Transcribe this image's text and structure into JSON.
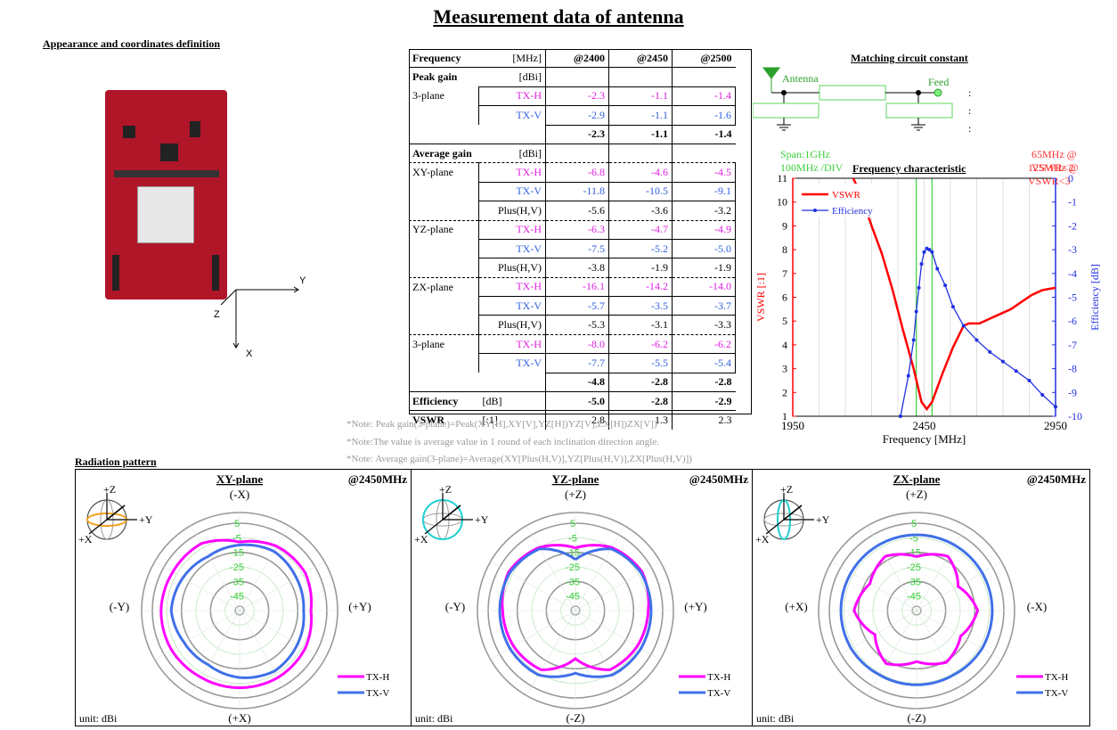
{
  "title": "Measurement data of antenna",
  "appearance": {
    "heading": "Appearance and coordinates definition",
    "axis_y": "Y",
    "axis_z": "Z",
    "axis_x": "X"
  },
  "table": {
    "header": [
      "Frequency",
      "[MHz]",
      "@2400",
      "@2450",
      "@2500"
    ],
    "peak_gain": {
      "label": "Peak gain",
      "unit": "[dBi]",
      "plane": "3-plane",
      "rows": [
        {
          "pol": "TX-H",
          "vals": [
            "-2.3",
            "-1.1",
            "-1.4"
          ]
        },
        {
          "pol": "TX-V",
          "vals": [
            "-2.9",
            "-1.1",
            "-1.6"
          ]
        }
      ],
      "total": [
        "-2.3",
        "-1.1",
        "-1.4"
      ]
    },
    "avg_gain": {
      "label": "Average gain",
      "unit": "[dBi]",
      "planes": [
        {
          "name": "XY-plane",
          "rows": [
            {
              "pol": "TX-H",
              "vals": [
                "-6.8",
                "-4.6",
                "-4.5"
              ]
            },
            {
              "pol": "TX-V",
              "vals": [
                "-11.8",
                "-10.5",
                "-9.1"
              ]
            },
            {
              "pol": "Plus(H,V)",
              "vals": [
                "-5.6",
                "-3.6",
                "-3.2"
              ]
            }
          ]
        },
        {
          "name": "YZ-plane",
          "rows": [
            {
              "pol": "TX-H",
              "vals": [
                "-6.3",
                "-4.7",
                "-4.9"
              ]
            },
            {
              "pol": "TX-V",
              "vals": [
                "-7.5",
                "-5.2",
                "-5.0"
              ]
            },
            {
              "pol": "Plus(H,V)",
              "vals": [
                "-3.8",
                "-1.9",
                "-1.9"
              ]
            }
          ]
        },
        {
          "name": "ZX-plane",
          "rows": [
            {
              "pol": "TX-H",
              "vals": [
                "-16.1",
                "-14.2",
                "-14.0"
              ]
            },
            {
              "pol": "TX-V",
              "vals": [
                "-5.7",
                "-3.5",
                "-3.7"
              ]
            },
            {
              "pol": "Plus(H,V)",
              "vals": [
                "-5.3",
                "-3.1",
                "-3.3"
              ]
            }
          ]
        },
        {
          "name": "3-plane",
          "rows": [
            {
              "pol": "TX-H",
              "vals": [
                "-8.0",
                "-6.2",
                "-6.2"
              ]
            },
            {
              "pol": "TX-V",
              "vals": [
                "-7.7",
                "-5.5",
                "-5.4"
              ]
            }
          ]
        }
      ],
      "total": [
        "-4.8",
        "-2.8",
        "-2.8"
      ]
    },
    "efficiency": {
      "label": "Efficiency",
      "unit": "[dB]",
      "vals": [
        "-5.0",
        "-2.8",
        "-2.9"
      ]
    },
    "vswr": {
      "label": "VSWR",
      "unit": "[:1]",
      "vals": [
        "2.8",
        "1.3",
        "2.3"
      ]
    }
  },
  "notes": [
    "*Note: Peak gain(3-plane)=Peak(XY[H],XY[V],YZ[H])YZ[V],ZX[H])ZX[V])",
    "*Note:The value is average value in 1 round of each inclination direction angle.",
    "*Note: Average gain(3-plane)=Average(XY[Plus(H,V)],YZ[Plus(H,V)],ZX[Plus(H,V)])"
  ],
  "matching": {
    "heading": "Matching circuit constant",
    "antenna": "Antenna",
    "feed": "Feed",
    "colon": ":"
  },
  "freq_chart": {
    "title": "Frequency characteristic",
    "span": "Span:1GHz",
    "div": "100MHz /DIV",
    "bw1": "65MHz @ VSWR<2",
    "bw2": "125MHz @ VSWR<3"
  },
  "radiation": {
    "heading": "Radiation pattern",
    "freq": "@2450MHz",
    "unit": "unit: dBi",
    "ring_labels": [
      "5",
      "-5",
      "-15",
      "-25",
      "-35",
      "-45"
    ],
    "legend_h": "TX-H",
    "legend_v": "TX-V",
    "colors": {
      "h": "#ff00ff",
      "v": "#4070e8"
    },
    "panels": [
      {
        "name": "XY-plane",
        "top": "(-X)",
        "bottom": "(+X)",
        "left": "(-Y)",
        "right": "(+Y)",
        "sphere": {
          "a": "+Z",
          "b": "+Y",
          "c": "+X"
        },
        "ring": "xy"
      },
      {
        "name": "YZ-plane",
        "top": "(+Z)",
        "bottom": "(-Z)",
        "left": "(-Y)",
        "right": "(+Y)",
        "sphere": {
          "a": "+Z",
          "b": "+Y",
          "c": "+X"
        },
        "ring": "yz"
      },
      {
        "name": "ZX-plane",
        "top": "(+Z)",
        "bottom": "(-Z)",
        "left": "(+X)",
        "right": "(-X)",
        "sphere": {
          "a": "+Z",
          "b": "+Y",
          "c": "+X"
        },
        "ring": "zx"
      }
    ]
  },
  "chart_data": [
    {
      "type": "line",
      "title": "Frequency characteristic",
      "xlabel": "Frequency [MHz]",
      "ylabel": "VSWR [:1]",
      "y2label": "Efficiency [dB]",
      "xlim": [
        1950,
        2950
      ],
      "ylim": [
        1,
        11
      ],
      "y2lim": [
        -10,
        0
      ],
      "xticks": [
        1950,
        2450,
        2950
      ],
      "yticks": [
        1,
        2,
        3,
        4,
        5,
        6,
        7,
        8,
        9,
        10,
        11
      ],
      "y2ticks": [
        0,
        -1,
        -2,
        -3,
        -4,
        -5,
        -6,
        -7,
        -8,
        -9,
        -10
      ],
      "legend": "top-left",
      "series": [
        {
          "name": "VSWR",
          "axis": "left",
          "color": "#ff0000",
          "x": [
            2180,
            2210,
            2250,
            2290,
            2330,
            2370,
            2410,
            2440,
            2460,
            2480,
            2520,
            2560,
            2600,
            2620,
            2660,
            2700,
            2740,
            2780,
            2820,
            2860,
            2900,
            2950
          ],
          "y": [
            11,
            10.3,
            9.0,
            7.8,
            6.3,
            4.6,
            3.0,
            1.6,
            1.3,
            1.6,
            2.8,
            3.9,
            4.8,
            4.9,
            4.9,
            5.1,
            5.3,
            5.5,
            5.8,
            6.1,
            6.3,
            6.4
          ]
        },
        {
          "name": "Efficiency",
          "axis": "right",
          "color": "#2030e0",
          "x": [
            2360,
            2390,
            2410,
            2420,
            2430,
            2440,
            2450,
            2460,
            2470,
            2480,
            2500,
            2530,
            2560,
            2600,
            2650,
            2700,
            2750,
            2800,
            2850,
            2900,
            2950
          ],
          "y": [
            -10,
            -8.3,
            -6.8,
            -5.6,
            -4.6,
            -3.6,
            -3.1,
            -2.95,
            -3.0,
            -3.1,
            -3.8,
            -4.5,
            -5.4,
            -6.2,
            -6.8,
            -7.3,
            -7.7,
            -8.1,
            -8.5,
            -9.1,
            -9.6
          ]
        }
      ],
      "markers": [
        2420,
        2480
      ]
    },
    {
      "type": "polar",
      "title": "XY-plane",
      "angle_step_deg": 30,
      "rlim": [
        -45,
        5
      ],
      "series": [
        {
          "name": "TX-H",
          "r": [
            -8,
            -4,
            -3,
            -6,
            -3,
            -2,
            -2,
            -2,
            -1,
            -1,
            -2,
            -2,
            -8
          ]
        },
        {
          "name": "TX-V",
          "r": [
            -10,
            -8,
            -10,
            -11,
            -9,
            -7,
            -9,
            -12,
            -11,
            -8,
            -10,
            -12,
            -10
          ]
        }
      ]
    },
    {
      "type": "polar",
      "title": "YZ-plane",
      "angle_step_deg": 30,
      "rlim": [
        -45,
        5
      ],
      "series": [
        {
          "name": "TX-H",
          "r": [
            -12,
            -5,
            -2,
            -5,
            -6,
            -8,
            -22,
            -8,
            -6,
            -5,
            -2,
            -5,
            -12
          ]
        },
        {
          "name": "TX-V",
          "r": [
            -20,
            -6,
            -3,
            -3,
            -3,
            -4,
            -12,
            -4,
            -3,
            -3,
            -3,
            -6,
            -20
          ]
        }
      ]
    },
    {
      "type": "polar",
      "title": "ZX-plane",
      "angle_step_deg": 30,
      "rlim": [
        -45,
        5
      ],
      "series": [
        {
          "name": "TX-H",
          "r": [
            -18,
            -12,
            -22,
            -13,
            -20,
            -14,
            -20,
            -13,
            -22,
            -12,
            -18,
            -12,
            -18
          ]
        },
        {
          "name": "TX-V",
          "r": [
            -3,
            -3,
            -3,
            -3,
            -3,
            -4,
            -4,
            -4,
            -3,
            -3,
            -3,
            -3,
            -3
          ]
        }
      ]
    }
  ]
}
